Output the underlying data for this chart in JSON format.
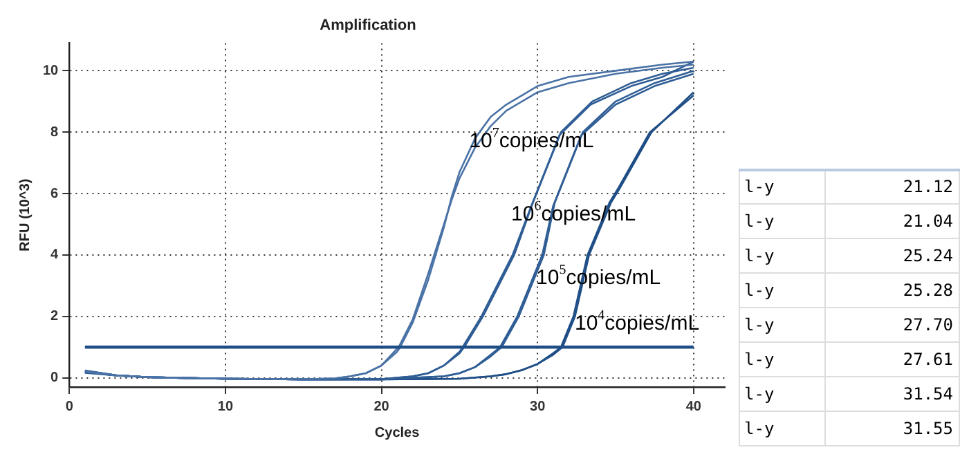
{
  "chart_data": [
    {
      "type": "line",
      "title": "Amplification",
      "xlabel": "Cycles",
      "ylabel": "RFU (10^3)",
      "xlim": [
        0,
        42
      ],
      "xticks": [
        0,
        10,
        20,
        30,
        40
      ],
      "ylim": [
        -0.3,
        10.9
      ],
      "yticks": [
        0,
        2,
        4,
        6,
        8,
        10
      ],
      "grid": true,
      "legend": false,
      "marker": "none",
      "line_style": "solid",
      "series": [
        {
          "color": "#4a72a6",
          "x": [
            1,
            3,
            5,
            10,
            15,
            17,
            18,
            19,
            20,
            21,
            21.2,
            22,
            23,
            24,
            24.5,
            25,
            26,
            27,
            28,
            30,
            32,
            35,
            38,
            40
          ],
          "values": [
            0.22,
            0.08,
            0.02,
            -0.03,
            -0.05,
            -0.02,
            0.05,
            0.15,
            0.4,
            0.85,
            1,
            1.8,
            3.2,
            4.9,
            5.9,
            6.7,
            7.8,
            8.5,
            8.9,
            9.5,
            9.8,
            10,
            10.2,
            10.3
          ]
        },
        {
          "color": "#4a72a6",
          "x": [
            1,
            3,
            5,
            10,
            15,
            17,
            18,
            19,
            20,
            21,
            21.1,
            22,
            23,
            24,
            24.5,
            25,
            26,
            27,
            28,
            30,
            32,
            35,
            38,
            40
          ],
          "values": [
            0.2,
            0.08,
            0.02,
            -0.03,
            -0.05,
            -0.02,
            0.05,
            0.15,
            0.4,
            0.95,
            1,
            1.9,
            3.4,
            5,
            5.8,
            6.5,
            7.5,
            8.2,
            8.7,
            9.3,
            9.6,
            9.9,
            10.1,
            10.2
          ]
        },
        {
          "color": "#2f5d95",
          "x": [
            1,
            3,
            5,
            10,
            15,
            20,
            22,
            23,
            24,
            25,
            25.3,
            26.5,
            28.5,
            29.7,
            31.5,
            33.5,
            36,
            38,
            40
          ],
          "values": [
            0.18,
            0.08,
            0.02,
            -0.03,
            -0.05,
            -0.04,
            0.05,
            0.15,
            0.4,
            0.8,
            1,
            2,
            4,
            5.7,
            8,
            9,
            9.6,
            9.9,
            10.1
          ]
        },
        {
          "color": "#2f5d95",
          "x": [
            1,
            3,
            5,
            10,
            15,
            20,
            22,
            23,
            24,
            25,
            25.2,
            26.4,
            28.4,
            29.6,
            31.4,
            33.4,
            36,
            38,
            40
          ],
          "values": [
            0.24,
            0.08,
            0.02,
            -0.03,
            -0.05,
            -0.04,
            0.05,
            0.15,
            0.4,
            0.85,
            1,
            2,
            4,
            5.6,
            7.9,
            8.9,
            9.5,
            9.8,
            10.3
          ]
        },
        {
          "color": "#2f5d95",
          "x": [
            1,
            3,
            5,
            10,
            15,
            20,
            24,
            25,
            26,
            27,
            27.7,
            28.8,
            30.4,
            31.1,
            32.9,
            35,
            37.5,
            40
          ],
          "values": [
            0.16,
            0.08,
            0.02,
            -0.03,
            -0.05,
            -0.05,
            0.05,
            0.15,
            0.35,
            0.7,
            1,
            2,
            4,
            5.7,
            8,
            9,
            9.6,
            10
          ]
        },
        {
          "color": "#2f5d95",
          "x": [
            1,
            3,
            5,
            10,
            15,
            20,
            24,
            25,
            26,
            27,
            27.6,
            28.7,
            30.3,
            31,
            32.8,
            35,
            37.5,
            40
          ],
          "values": [
            0.21,
            0.08,
            0.02,
            -0.03,
            -0.05,
            -0.05,
            0.05,
            0.15,
            0.35,
            0.75,
            1,
            2,
            4,
            5.6,
            7.9,
            8.9,
            9.5,
            9.9
          ]
        },
        {
          "color": "#1f4e86",
          "x": [
            1,
            3,
            5,
            10,
            15,
            20,
            25,
            27,
            28,
            29,
            30,
            31,
            31.6,
            32.4,
            33.3,
            34.7,
            35.3,
            37.3,
            40
          ],
          "values": [
            0.19,
            0.08,
            0.02,
            -0.03,
            -0.05,
            -0.05,
            -0.03,
            0.05,
            0.12,
            0.25,
            0.45,
            0.75,
            1,
            2,
            4,
            5.7,
            6.2,
            8,
            9.3
          ]
        },
        {
          "color": "#1f4e86",
          "x": [
            1,
            3,
            5,
            10,
            15,
            20,
            25,
            27,
            28,
            29,
            30,
            31,
            31.5,
            32.3,
            33.2,
            34.6,
            35.2,
            37.2,
            40
          ],
          "values": [
            0.23,
            0.08,
            0.02,
            -0.03,
            -0.05,
            -0.05,
            -0.03,
            0.05,
            0.12,
            0.25,
            0.45,
            0.8,
            1,
            2,
            4,
            5.7,
            6.2,
            8,
            9.2
          ]
        }
      ],
      "ref_lines": [
        {
          "axis": "y",
          "value": 1,
          "color": "#1f4e86"
        }
      ],
      "annotations": [
        "10$^{7}$copies/mL",
        "10$^{6}$copies/mL",
        "10$^{5}$copies/mL",
        "10$^{4}$copies/mL"
      ]
    },
    {
      "type": "other",
      "annotations": [
        "l-y",
        "21.12",
        "l-y",
        "21.04",
        "l-y",
        "25.24",
        "l-y",
        "25.28",
        "l-y",
        "27.70",
        "l-y",
        "27.61",
        "l-y",
        "31.54",
        "l-y",
        "31.55"
      ]
    }
  ]
}
